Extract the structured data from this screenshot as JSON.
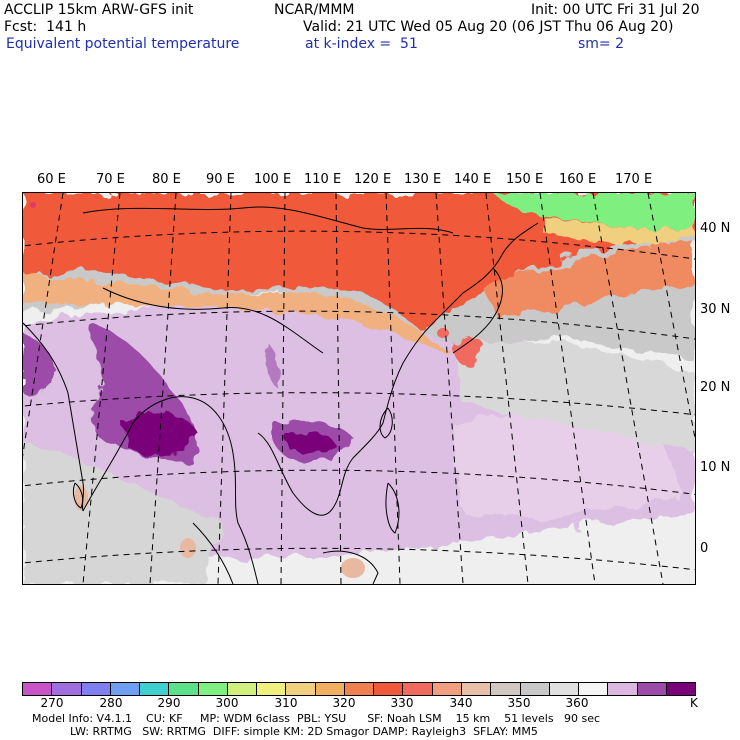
{
  "header": {
    "model_title": "ACCLIP 15km ARW-GFS init",
    "org": "NCAR/MMM",
    "init": "Init: 00 UTC Fri 31 Jul 20",
    "fcst": "Fcst:  141 h",
    "valid": "Valid: 21 UTC Wed 05 Aug 20 (06 JST Thu 06 Aug 20)",
    "field": "Equivalent potential temperature",
    "level": "at k-index =  51",
    "smooth": "sm= 2"
  },
  "map": {
    "lon_labels": [
      "60 E",
      "70 E",
      "80 E",
      "90 E",
      "100 E",
      "110 E",
      "120 E",
      "130 E",
      "140 E",
      "150 E",
      "160 E",
      "170 E"
    ],
    "lat_labels": [
      "40 N",
      "30 N",
      "20 N",
      "10 N",
      "0"
    ]
  },
  "colorbar": {
    "colors": [
      "#c854c8",
      "#9f6fe0",
      "#7f7ff0",
      "#6f9ff0",
      "#3fcfcf",
      "#5ce08a",
      "#7ff07f",
      "#cff07f",
      "#f0f07f",
      "#f0d07f",
      "#f0b060",
      "#f08050",
      "#f05a3a",
      "#f06a60",
      "#f0a080",
      "#e8c0a8",
      "#d0c8c0",
      "#c8c8c8",
      "#e0e0e0",
      "#f5f5f5",
      "#dcb8e0",
      "#9c4ca8",
      "#7a007a"
    ],
    "ticks": [
      "270",
      "280",
      "290",
      "300",
      "310",
      "320",
      "330",
      "340",
      "350",
      "360"
    ],
    "unit": "K"
  },
  "footer": {
    "line1": "Model Info: V4.1.1    CU: KF     MP: WDM 6class  PBL: YSU      SF: Noah LSM    15 km    51 levels   90 sec",
    "line2": "LW: RRTMG   SW: RRTMG  DIFF: simple KM: 2D Smagor DAMP: Rayleigh3  SFLAY: MM5"
  }
}
